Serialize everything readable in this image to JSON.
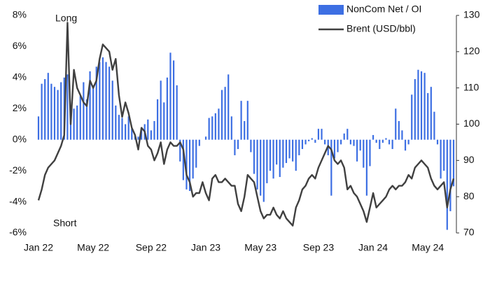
{
  "chart_data": {
    "type": "bar",
    "annotations": [
      "Long",
      "Short"
    ],
    "categories": [
      "Jan 22",
      null,
      null,
      null,
      null,
      null,
      null,
      null,
      null,
      null,
      null,
      null,
      null,
      null,
      null,
      null,
      null,
      "May 22",
      null,
      null,
      null,
      null,
      null,
      null,
      null,
      null,
      null,
      null,
      null,
      null,
      null,
      null,
      null,
      null,
      null,
      "Sep 22",
      null,
      null,
      null,
      null,
      null,
      null,
      null,
      null,
      null,
      null,
      null,
      null,
      null,
      null,
      null,
      null,
      "Jan 23",
      null,
      null,
      null,
      null,
      null,
      null,
      null,
      null,
      null,
      null,
      null,
      null,
      null,
      null,
      null,
      null,
      "May 23",
      null,
      null,
      null,
      null,
      null,
      null,
      null,
      null,
      null,
      null,
      null,
      null,
      null,
      null,
      null,
      null,
      null,
      "Sep 23",
      null,
      null,
      null,
      null,
      null,
      null,
      null,
      null,
      null,
      null,
      null,
      null,
      null,
      null,
      null,
      null,
      "Jan 24",
      null,
      null,
      null,
      null,
      null,
      null,
      null,
      null,
      null,
      null,
      null,
      null,
      null,
      null,
      null,
      null,
      "May 24",
      null,
      null,
      null,
      null,
      null,
      null,
      null,
      null
    ],
    "series": [
      {
        "name": "NonCom Net / OI",
        "color": "#3d6fe3",
        "type": "bar",
        "values": [
          1.5,
          3.6,
          3.9,
          4.3,
          3.6,
          3.4,
          3.2,
          3.7,
          4.0,
          4.2,
          1.3,
          2.0,
          2.2,
          2.8,
          3.7,
          2.6,
          4.4,
          3.5,
          4.7,
          5.0,
          5.3,
          5.0,
          4.7,
          3.8,
          2.2,
          1.6,
          1.4,
          1.0,
          1.5,
          0.7,
          0.3,
          0.2,
          0.8,
          1.0,
          1.3,
          0.6,
          1.2,
          2.6,
          3.8,
          2.4,
          4.0,
          5.6,
          5.1,
          3.5,
          -1.4,
          -2.6,
          -3.2,
          -3.3,
          -2.5,
          -1.8,
          -0.4,
          0.0,
          0.2,
          1.4,
          1.5,
          1.7,
          2.0,
          3.2,
          3.4,
          4.2,
          1.5,
          -1.0,
          -0.6,
          2.5,
          1.2,
          2.5,
          -0.8,
          -2.2,
          -3.2,
          -3.6,
          -4.0,
          -2.8,
          -2.0,
          -2.5,
          -1.6,
          -2.4,
          -1.8,
          -1.5,
          -1.2,
          -1.4,
          -2.0,
          -1.0,
          -0.6,
          -0.3,
          -0.1,
          0.1,
          -0.2,
          0.7,
          0.7,
          -0.3,
          -1.0,
          -3.6,
          -1.2,
          -0.8,
          -0.3,
          0.4,
          0.7,
          -0.3,
          -0.4,
          -1.4,
          -0.7,
          -1.8,
          -3.6,
          -1.7,
          0.3,
          -0.2,
          -0.6,
          -0.2,
          0.1,
          -0.3,
          -0.6,
          2.0,
          1.2,
          0.6,
          -0.7,
          -0.3,
          2.9,
          3.9,
          4.5,
          4.4,
          4.3,
          3.0,
          3.4,
          1.8,
          -0.3,
          -2.5,
          -2.0,
          -5.8,
          -4.6,
          -3.0
        ]
      },
      {
        "name": "Brent (USD/bbl)",
        "color": "#404040",
        "type": "line",
        "axis": "y2",
        "values": [
          79,
          82,
          86,
          88,
          89,
          90,
          92,
          94,
          97,
          128,
          100,
          115,
          110,
          108,
          106,
          105,
          112,
          110,
          112,
          118,
          122,
          121,
          120,
          115,
          118,
          108,
          102,
          106,
          103,
          99,
          97,
          93,
          99,
          98,
          94,
          93,
          90,
          92,
          95,
          89,
          93,
          95,
          94,
          94,
          95,
          93,
          86,
          84,
          80,
          81,
          81,
          84,
          81,
          79,
          85,
          86,
          84,
          84,
          85,
          84,
          83,
          83,
          78,
          76,
          80,
          86,
          85,
          84,
          80,
          76,
          74,
          75,
          75,
          77,
          75,
          74,
          76,
          74,
          73,
          72,
          77,
          79,
          82,
          83,
          85,
          86,
          85,
          88,
          90,
          92,
          94,
          93,
          90,
          89,
          90,
          88,
          82,
          83,
          81,
          80,
          78,
          76,
          73,
          77,
          81,
          77,
          78,
          79,
          80,
          82,
          83,
          82,
          83,
          83,
          84,
          86,
          85,
          88,
          89,
          90,
          89,
          88,
          85,
          83,
          82,
          83,
          84,
          77,
          82,
          85
        ]
      }
    ],
    "ylim": [
      -6,
      8
    ],
    "yticks": [
      {
        "value": -6,
        "label": "-6%"
      },
      {
        "value": -4,
        "label": "-4%"
      },
      {
        "value": -2,
        "label": "-2%"
      },
      {
        "value": 0,
        "label": "0%"
      },
      {
        "value": 2,
        "label": "2%"
      },
      {
        "value": 4,
        "label": "4%"
      },
      {
        "value": 6,
        "label": "6%"
      },
      {
        "value": 8,
        "label": "8%"
      }
    ],
    "y2lim": [
      70,
      130
    ],
    "y2ticks": [
      70,
      80,
      90,
      100,
      110,
      120,
      130
    ],
    "legend": "top-right"
  }
}
